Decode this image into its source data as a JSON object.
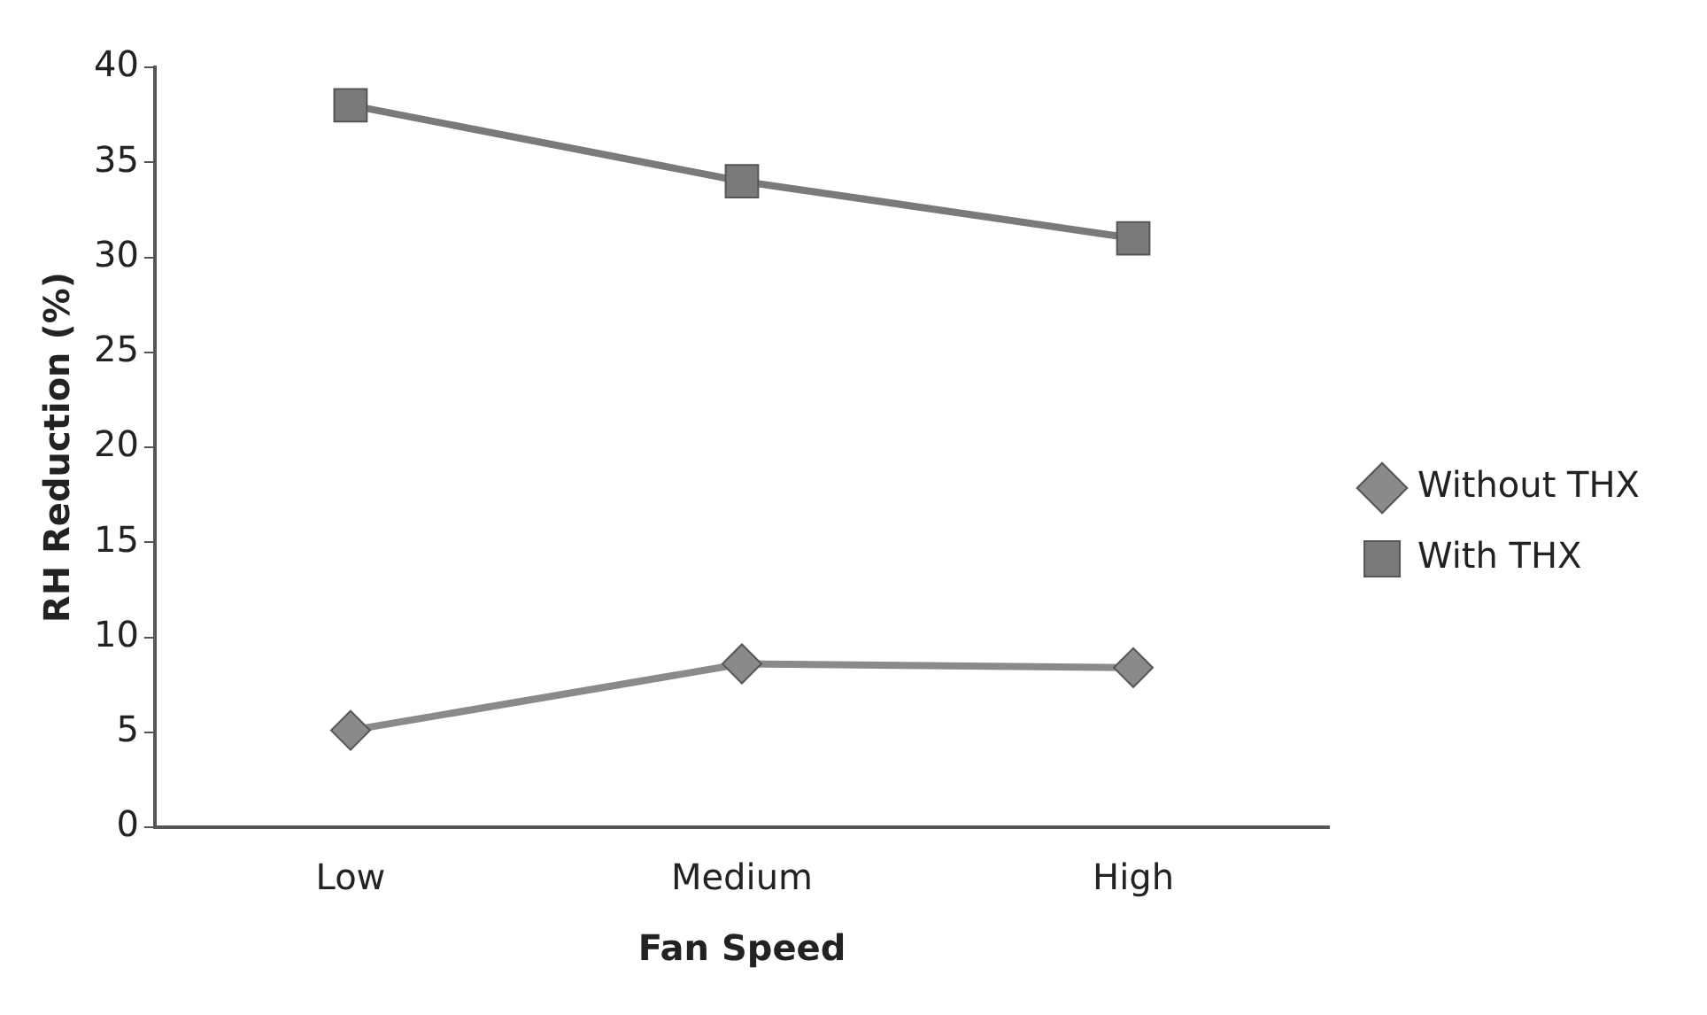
{
  "chart_data": {
    "type": "line",
    "xlabel": "Fan Speed",
    "ylabel": "RH Reduction (%)",
    "categories": [
      "Low",
      "Medium",
      "High"
    ],
    "series": [
      {
        "name": "Without THX",
        "color": "#8a8a8a",
        "marker": "diamond",
        "values": [
          5.1,
          8.6,
          8.4
        ]
      },
      {
        "name": "With THX",
        "color": "#7a7a7a",
        "marker": "square",
        "values": [
          38,
          34,
          31
        ]
      }
    ],
    "ylim": [
      0,
      40
    ],
    "yticks": [
      0,
      5,
      10,
      15,
      20,
      25,
      30,
      35,
      40
    ],
    "grid": false,
    "legend": "right",
    "line_style": "solid"
  }
}
